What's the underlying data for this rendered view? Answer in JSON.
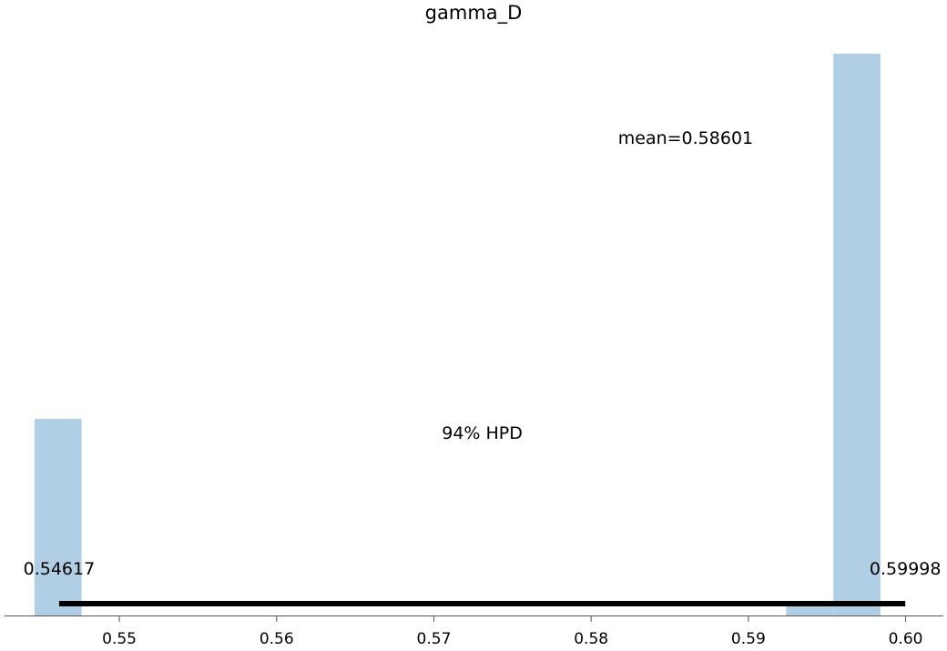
{
  "chart_data": {
    "type": "bar",
    "title": "gamma_D",
    "xlabel": "",
    "ylabel": "",
    "xlim": [
      0.5427,
      0.6024
    ],
    "ylim": [
      0,
      1.08
    ],
    "x_ticks": [
      0.55,
      0.56,
      0.57,
      0.58,
      0.59,
      0.6
    ],
    "x_tick_labels": [
      "0.55",
      "0.56",
      "0.57",
      "0.58",
      "0.59",
      "0.60"
    ],
    "bars": [
      {
        "x_start": 0.5446,
        "x_end": 0.5476,
        "value": 0.35
      },
      {
        "x_start": 0.5924,
        "x_end": 0.5954,
        "value": 0.02
      },
      {
        "x_start": 0.5954,
        "x_end": 0.5984,
        "value": 1.0
      }
    ],
    "bar_color": "#b1cfe4",
    "mean": 0.58601,
    "mean_label": "mean=0.58601",
    "hpd_label": "94% HPD",
    "hpd_low": 0.54617,
    "hpd_high": 0.59998,
    "hpd_low_label": "0.54617",
    "hpd_high_label": "0.59998",
    "grid": false
  }
}
